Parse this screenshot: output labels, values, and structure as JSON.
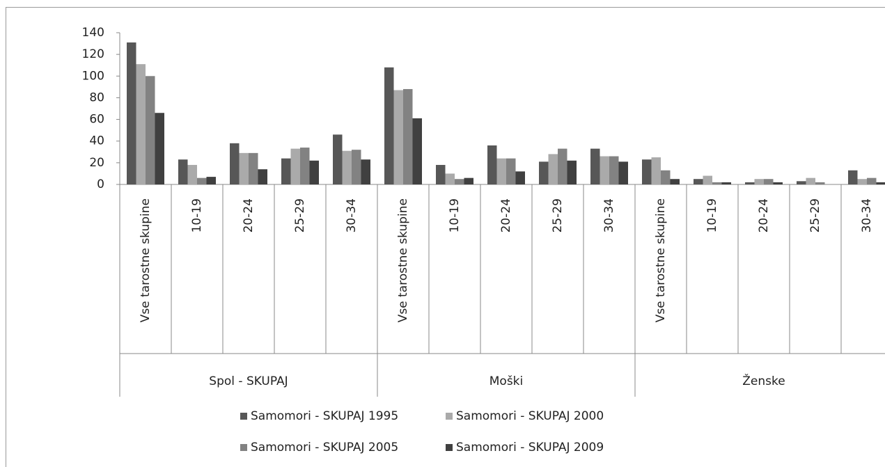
{
  "chart_data": {
    "type": "bar",
    "categories": [
      "Vse tarostne skupine",
      "10-19",
      "20-24",
      "25-29",
      "30-34",
      "Vse tarostne skupine",
      "10-19",
      "20-24",
      "25-29",
      "30-34",
      "Vse tarostne skupine",
      "10-19",
      "20-24",
      "25-29",
      "30-34"
    ],
    "category_groups": [
      "Spol - SKUPAJ",
      "Moški",
      "Ženske"
    ],
    "series": [
      {
        "name": "Samomori - SKUPAJ 1995",
        "color": "#575757",
        "values": [
          131,
          23,
          38,
          24,
          46,
          108,
          18,
          36,
          21,
          33,
          23,
          5,
          2,
          3,
          13
        ]
      },
      {
        "name": "Samomori - SKUPAJ 2000",
        "color": "#aaaaaa",
        "values": [
          111,
          18,
          29,
          33,
          31,
          87,
          10,
          24,
          28,
          26,
          25,
          8,
          5,
          6,
          5
        ]
      },
      {
        "name": "Samomori - SKUPAJ 2005",
        "color": "#828282",
        "values": [
          100,
          6,
          29,
          34,
          32,
          88,
          5,
          24,
          33,
          26,
          13,
          2,
          5,
          2,
          6
        ]
      },
      {
        "name": "Samomori - SKUPAJ 2009",
        "color": "#404040",
        "values": [
          66,
          7,
          14,
          22,
          23,
          61,
          6,
          12,
          22,
          21,
          5,
          2,
          2,
          0,
          2
        ]
      }
    ],
    "ylim": [
      0,
      140
    ],
    "yticks": [
      0,
      20,
      40,
      60,
      80,
      100,
      120,
      140
    ],
    "grid": false
  }
}
